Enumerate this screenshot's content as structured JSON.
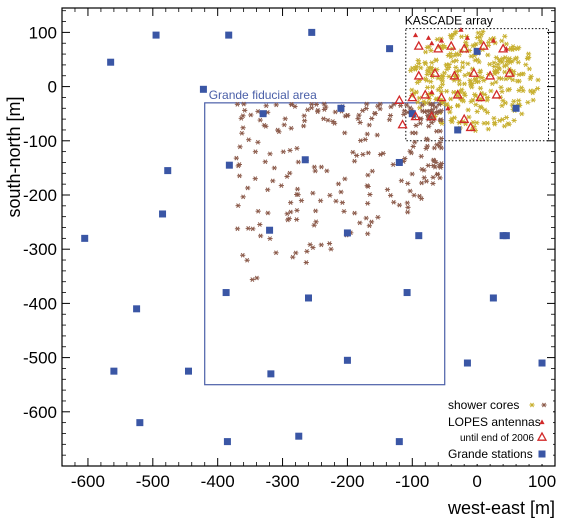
{
  "chart_data": {
    "type": "scatter",
    "xlabel": "west-east [m]",
    "ylabel": "south-north [m]",
    "xlim": [
      -640,
      120
    ],
    "ylim": [
      -700,
      145
    ],
    "x_ticks": [
      -600,
      -500,
      -400,
      -300,
      -200,
      -100,
      0,
      100
    ],
    "y_ticks": [
      -600,
      -500,
      -400,
      -300,
      -200,
      -100,
      0,
      100
    ],
    "x_tick_labels": [
      "-600",
      "-500",
      "-400",
      "-300",
      "-200",
      "-100",
      "0",
      "100"
    ],
    "y_tick_labels": [
      "-600",
      "-500",
      "-400",
      "-300",
      "-200",
      "-100",
      "0",
      "100"
    ],
    "grid": false,
    "legend_position": "bottom-right",
    "annotations": {
      "kascade": {
        "label": "KASCADE array",
        "x_range": [
          -110,
          110
        ],
        "y_range": [
          -100,
          107
        ],
        "style": "dotted"
      },
      "grande": {
        "label": "Grande fiducial area",
        "x_range": [
          -420,
          -50
        ],
        "y_range": [
          -550,
          -30
        ],
        "color": "#4a5fa8"
      }
    },
    "legend": {
      "shower_cores": "shower cores",
      "lopes_antennas": "LOPES antennas",
      "lopes_2006": "until end of 2006",
      "grande_stations": "Grande stations"
    },
    "colors": {
      "station": "#3a56a5",
      "shower_inside": "#8b5a4a",
      "shower_kascade": "#c8b030",
      "antenna": "#d22a2a",
      "fiducial": "#4a5fa8"
    },
    "series": [
      {
        "name": "Grande stations",
        "x": [
          -495,
          -383,
          -255,
          -135,
          -565,
          -422,
          -330,
          -210,
          -100,
          -30,
          0,
          60,
          -605,
          -477,
          -382,
          -485,
          -320,
          -265,
          -200,
          -120,
          -525,
          -387,
          -260,
          -108,
          -90,
          -560,
          -445,
          -318,
          -200,
          40,
          100,
          -15,
          25,
          45,
          -520,
          -385,
          -275,
          -120
        ],
        "y": [
          95,
          95,
          100,
          70,
          45,
          -5,
          -50,
          -40,
          -50,
          -80,
          65,
          -40,
          -280,
          -155,
          -145,
          -235,
          -265,
          -135,
          -270,
          -140,
          -410,
          -380,
          -390,
          -380,
          -275,
          -525,
          -525,
          -530,
          -505,
          -275,
          -510,
          -510,
          -390,
          -275,
          -620,
          -655,
          -645,
          -655
        ]
      },
      {
        "name": "LOPES antennas",
        "x": [
          -95,
          -75,
          -70,
          -55,
          -15,
          25,
          45,
          -25,
          -70,
          -45
        ],
        "y": [
          95,
          90,
          80,
          85,
          90,
          85,
          70,
          105,
          -10,
          -40
        ]
      },
      {
        "name": "until end of 2006",
        "x": [
          -90,
          -60,
          -40,
          -20,
          10,
          40,
          -90,
          -65,
          -35,
          -5,
          20,
          50,
          -100,
          -80,
          -55,
          -30,
          5,
          30,
          -95,
          -70,
          -120,
          -115,
          -20,
          -10
        ],
        "y": [
          75,
          70,
          75,
          70,
          75,
          70,
          20,
          25,
          20,
          25,
          20,
          25,
          -20,
          -15,
          -20,
          -15,
          -20,
          -15,
          -55,
          -55,
          -25,
          -70,
          -60,
          -75
        ]
      }
    ]
  }
}
